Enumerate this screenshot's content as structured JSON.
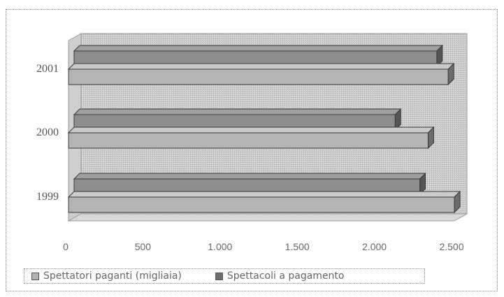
{
  "chart_data": {
    "type": "bar",
    "orientation": "horizontal",
    "categories": [
      "2001",
      "2000",
      "1999"
    ],
    "series": [
      {
        "name": "Spettatori paganti (migliaia)",
        "values": [
          2460,
          2330,
          2500
        ],
        "color": "#b4b4b4"
      },
      {
        "name": "Spettacoli a pagamento",
        "values": [
          2350,
          2080,
          2240
        ],
        "color": "#8e8e8e"
      }
    ],
    "x_tick_labels": [
      "0",
      "500",
      "1.000",
      "1.500",
      "2.000",
      "2.500"
    ],
    "x_ticks": [
      0,
      500,
      1000,
      1500,
      2000,
      2500
    ],
    "xlim": [
      0,
      2500
    ],
    "grid": false,
    "legend_position": "bottom"
  }
}
